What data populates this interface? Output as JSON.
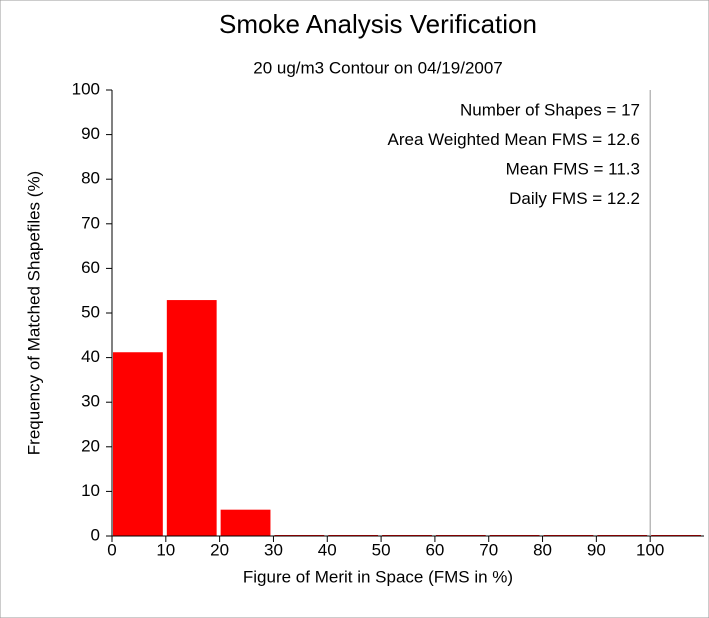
{
  "chart_data": {
    "type": "histogram",
    "title": "Smoke Analysis Verification",
    "subtitle": "20 ug/m3 Contour on 04/19/2007",
    "x_label": "Figure of Merit in Space (FMS in %)",
    "y_label": "Frequency of Matched Shapefiles (%)",
    "annotations": [
      "Number of Shapes = 17",
      "Area Weighted Mean FMS = 12.6",
      "Mean FMS = 11.3",
      "Daily FMS = 12.2"
    ],
    "bins": [
      0,
      10,
      20,
      30,
      40,
      50,
      60,
      70,
      80,
      90,
      100,
      110
    ],
    "values": [
      41.2,
      52.9,
      5.9,
      0,
      0,
      0,
      0,
      0,
      0,
      0,
      0
    ],
    "color": "#ff0000",
    "xlim": [
      0,
      110
    ],
    "xticks": [
      0,
      10,
      20,
      30,
      40,
      50,
      60,
      70,
      80,
      90,
      100
    ],
    "ylim": [
      0,
      100
    ],
    "yticks": [
      0,
      10,
      20,
      30,
      40,
      50,
      60,
      70,
      80,
      90,
      100
    ]
  }
}
